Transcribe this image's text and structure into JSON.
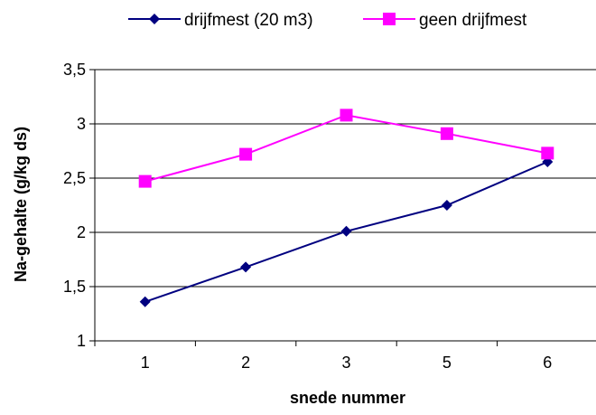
{
  "chart_data": {
    "type": "line",
    "categories": [
      "1",
      "2",
      "3",
      "5",
      "6"
    ],
    "series": [
      {
        "name": "drijfmest (20 m3)",
        "values": [
          1.36,
          1.68,
          2.01,
          2.25,
          2.65
        ],
        "color": "#000080",
        "marker": "diamond"
      },
      {
        "name": "geen drijfmest",
        "values": [
          2.47,
          2.72,
          3.08,
          2.91,
          2.73
        ],
        "color": "#ff00ff",
        "marker": "square"
      }
    ],
    "xlabel": "snede nummer",
    "ylabel": "Na-gehalte (g/kg ds)",
    "ylim": [
      1,
      3.5
    ],
    "yticks": [
      "1",
      "1,5",
      "2",
      "2,5",
      "3",
      "3,5"
    ],
    "grid": true,
    "legend": "top"
  }
}
